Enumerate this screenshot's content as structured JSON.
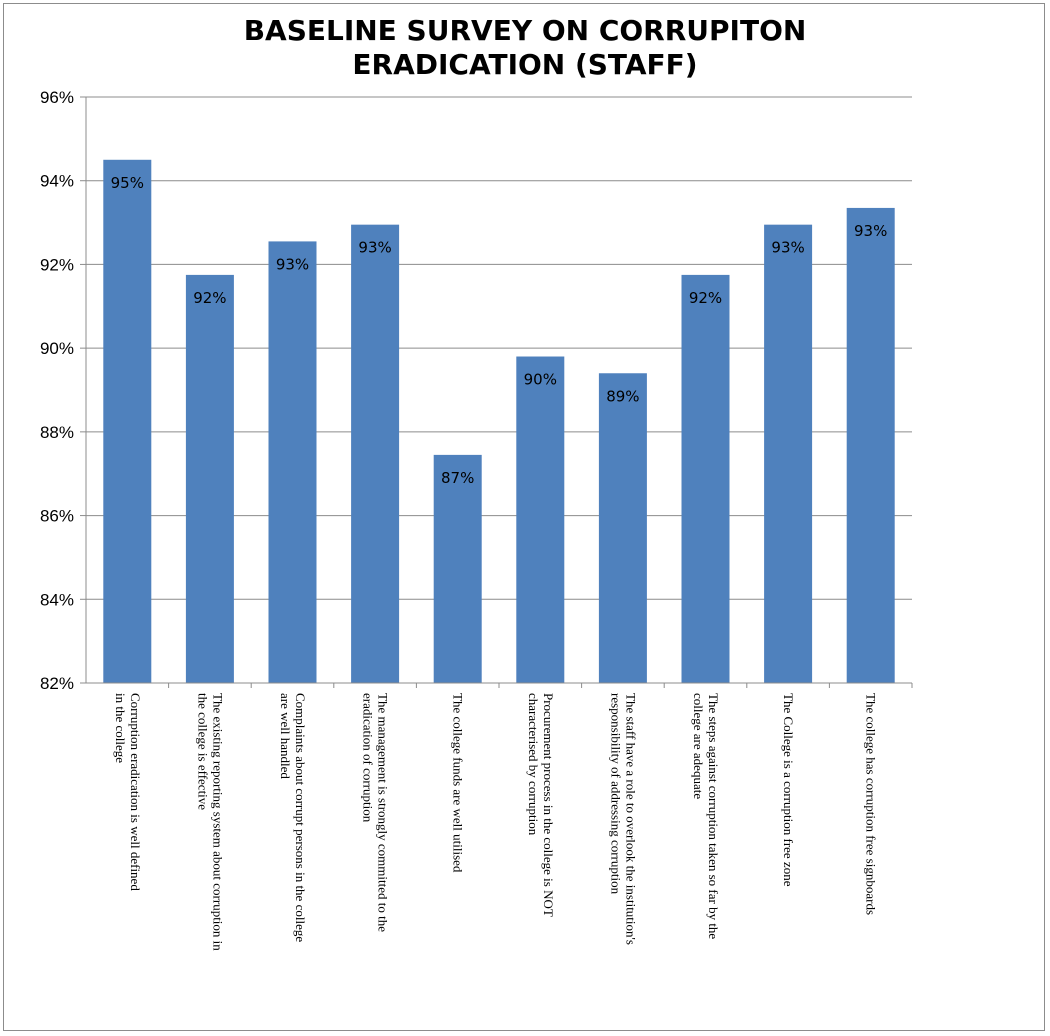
{
  "chart_data": {
    "type": "bar",
    "title": [
      "BASELINE SURVEY ON CORRUPITON",
      "ERADICATION (STAFF)"
    ],
    "xlabel": "",
    "ylabel": "",
    "ylim": [
      0.82,
      0.96
    ],
    "y_ticks": [
      0.82,
      0.84,
      0.86,
      0.88,
      0.9,
      0.92,
      0.94,
      0.96
    ],
    "y_tick_labels": [
      "82%",
      "84%",
      "86%",
      "88%",
      "90%",
      "92%",
      "94%",
      "96%"
    ],
    "grid": true,
    "legend": "none",
    "bar_color": "#4f81bd",
    "categories": [
      [
        "Corruption eradication is well defined",
        "in the college"
      ],
      [
        "The existing reporting system about corruption in",
        "the college is effective"
      ],
      [
        "Complaints about corrupt persons in the college",
        "are well handled"
      ],
      [
        "The management is strongly committed to the",
        "eradication of corruption"
      ],
      [
        "The college funds are well utilised"
      ],
      [
        "Procurement process in the college is NOT",
        "characterised by corruption"
      ],
      [
        "The staff have a role to overlook the institution's",
        "responsibility of addressing corruption"
      ],
      [
        "The steps against corruption taken  so far by the",
        "college are adequate"
      ],
      [
        "The College is a corruption free zone"
      ],
      [
        "The college has corruption free signboards"
      ]
    ],
    "values": [
      0.945,
      0.9175,
      0.9255,
      0.9295,
      0.8745,
      0.898,
      0.894,
      0.9175,
      0.9295,
      0.9335
    ],
    "data_labels": [
      "95%",
      "92%",
      "93%",
      "93%",
      "87%",
      "90%",
      "89%",
      "92%",
      "93%",
      "93%"
    ]
  }
}
